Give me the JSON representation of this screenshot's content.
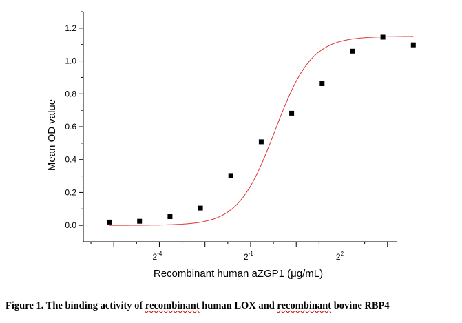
{
  "chart_data": {
    "type": "scatter",
    "xlabel": "Recombinant human aZGP1 (μg/mL)",
    "ylabel": "Mean OD value",
    "x_scale": "log2",
    "xlim_log2": [
      -6.5,
      3.8
    ],
    "ylim": [
      -0.1,
      1.3
    ],
    "x_ticks": [
      {
        "base": "2",
        "exp": "-4",
        "log2": -4
      },
      {
        "base": "2",
        "exp": "-1",
        "log2": -1
      },
      {
        "base": "2",
        "exp": "2",
        "log2": 2
      }
    ],
    "y_ticks": [
      "0.0",
      "0.2",
      "0.4",
      "0.6",
      "0.8",
      "1.0",
      "1.2"
    ],
    "y_tick_values": [
      0.0,
      0.2,
      0.4,
      0.6,
      0.8,
      1.0,
      1.2
    ],
    "points": [
      {
        "log2x": -5.65,
        "y": 0.02
      },
      {
        "log2x": -4.65,
        "y": 0.025
      },
      {
        "log2x": -3.65,
        "y": 0.053
      },
      {
        "log2x": -2.65,
        "y": 0.105
      },
      {
        "log2x": -1.65,
        "y": 0.303
      },
      {
        "log2x": -0.65,
        "y": 0.508
      },
      {
        "log2x": 0.35,
        "y": 0.682
      },
      {
        "log2x": 1.35,
        "y": 0.862
      },
      {
        "log2x": 2.35,
        "y": 1.06
      },
      {
        "log2x": 3.35,
        "y": 1.145
      },
      {
        "log2x": 4.35,
        "y": 1.098
      }
    ],
    "fit": {
      "bottom": 0.0,
      "top": 1.15,
      "log2_ec50": -0.2,
      "slope_per_log2": 0.6
    },
    "colors": {
      "points": "#000000",
      "fit": "#e03030",
      "axes": "#000000"
    }
  },
  "caption": {
    "prefix": "Figure 1. The binding activity of ",
    "word1": "recombinant",
    "middle": " human LOX and ",
    "word2": "recombinant",
    "suffix": " bovine RBP4"
  }
}
